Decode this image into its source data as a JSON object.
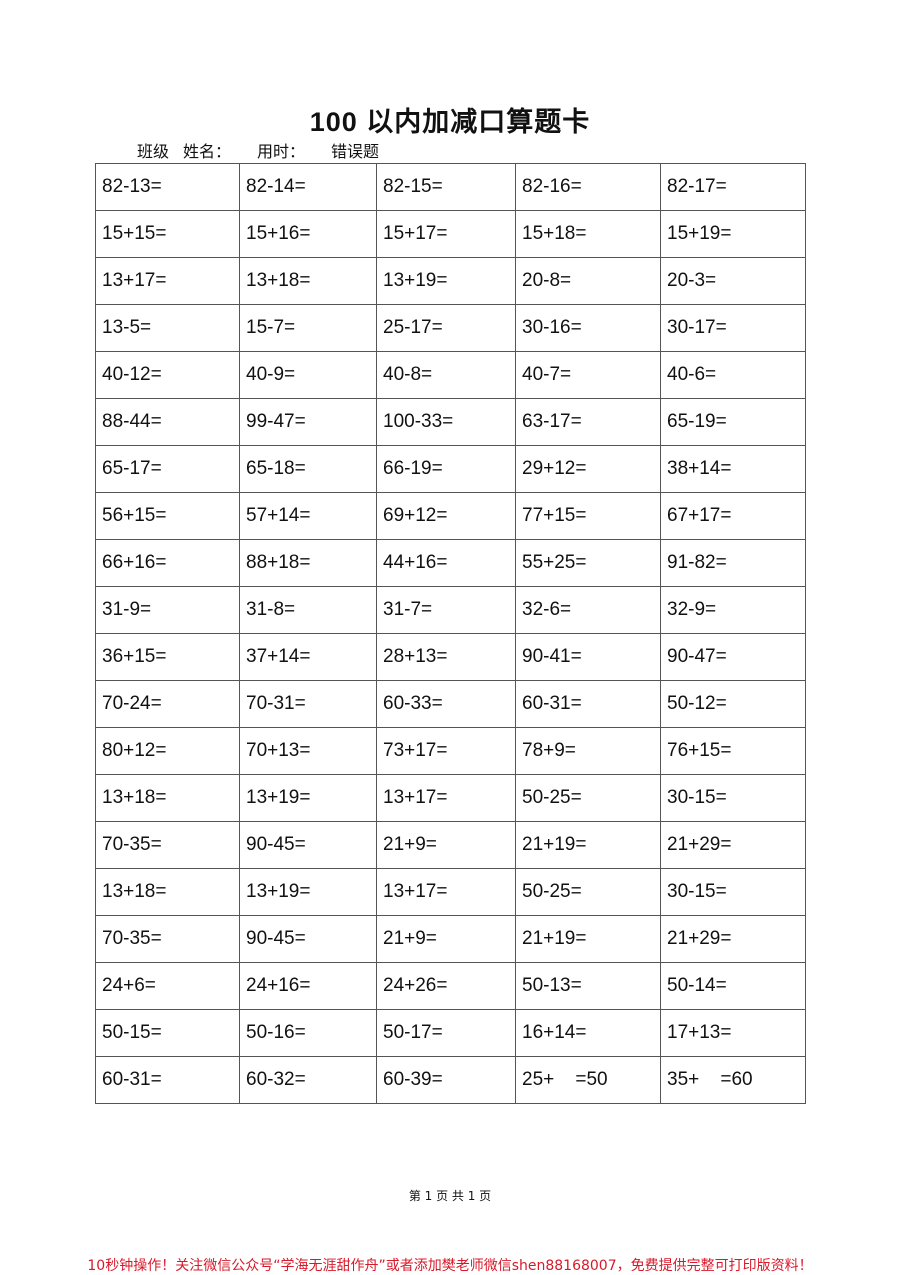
{
  "title": "100 以内加减口算题卡",
  "info": {
    "class_label": "班级",
    "name_label": "姓名：",
    "time_label": "用时：",
    "errors_label": "错误题"
  },
  "rows": [
    [
      "82-13=",
      "82-14=",
      "82-15=",
      "82-16=",
      "82-17="
    ],
    [
      "15+15=",
      "15+16=",
      "15+17=",
      "15+18=",
      "15+19="
    ],
    [
      "13+17=",
      "13+18=",
      "13+19=",
      "20-8=",
      "20-3="
    ],
    [
      "13-5=",
      "15-7=",
      "25-17=",
      "30-16=",
      "30-17="
    ],
    [
      "40-12=",
      "40-9=",
      "40-8=",
      "40-7=",
      "40-6="
    ],
    [
      "88-44=",
      "99-47=",
      "100-33=",
      "63-17=",
      "65-19="
    ],
    [
      "65-17=",
      "65-18=",
      "66-19=",
      "29+12=",
      "38+14="
    ],
    [
      "56+15=",
      "57+14=",
      "69+12=",
      "77+15=",
      "67+17="
    ],
    [
      "66+16=",
      "88+18=",
      "44+16=",
      "55+25=",
      "91-82="
    ],
    [
      "31-9=",
      "31-8=",
      "31-7=",
      "32-6=",
      "32-9="
    ],
    [
      "36+15=",
      "37+14=",
      "28+13=",
      "90-41=",
      "90-47="
    ],
    [
      "70-24=",
      "70-31=",
      "60-33=",
      "60-31=",
      "50-12="
    ],
    [
      "80+12=",
      "70+13=",
      "73+17=",
      "78+9=",
      "76+15="
    ],
    [
      "13+18=",
      "13+19=",
      "13+17=",
      "50-25=",
      "30-15="
    ],
    [
      "70-35=",
      "90-45=",
      "21+9=",
      "21+19=",
      "21+29="
    ],
    [
      "13+18=",
      "13+19=",
      "13+17=",
      "50-25=",
      "30-15="
    ],
    [
      "70-35=",
      "90-45=",
      "21+9=",
      "21+19=",
      "21+29="
    ],
    [
      "24+6=",
      "24+16=",
      "24+26=",
      "50-13=",
      "50-14="
    ],
    [
      "50-15=",
      "50-16=",
      "50-17=",
      "16+14=",
      "17+13="
    ],
    [
      "60-31=",
      "60-32=",
      "60-39=",
      "25+    =50",
      "35+    =60"
    ]
  ],
  "footer": {
    "page": "第 1 页 共 1 页"
  },
  "promo": "10秒钟操作！关注微信公众号“学海无涯甜作舟”或者添加樊老师微信shen88168007，免费提供完整可打印版资料！",
  "colors": {
    "promo": "#d8192a",
    "grid": "#555555"
  }
}
